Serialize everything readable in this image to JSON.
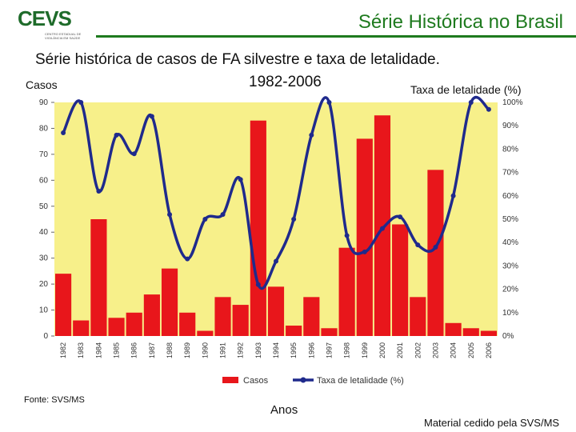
{
  "header": {
    "logo_text": "CEVS",
    "logo_subtext": "CENTRO ESTADUAL DE VIGILÂNCIA EM SAÚDE",
    "title": "Série Histórica no Brasil"
  },
  "chart_data": {
    "type": "bar",
    "title_line1": "Série histórica de casos  de FA silvestre e taxa de letalidade.",
    "title_line2": "1982-2006",
    "ylabel": "Casos",
    "y2label": "Taxa de letalidade (%)",
    "xlabel": "Anos",
    "categories": [
      "1982",
      "1983",
      "1984",
      "1985",
      "1986",
      "1987",
      "1988",
      "1989",
      "1990",
      "1991",
      "1992",
      "1993",
      "1994",
      "1995",
      "1996",
      "1997",
      "1998",
      "1999",
      "2000",
      "2001",
      "2002",
      "2003",
      "2004",
      "2005",
      "2006"
    ],
    "ylim": [
      0,
      90
    ],
    "yticks": [
      0,
      10,
      20,
      30,
      40,
      50,
      60,
      70,
      80,
      90
    ],
    "y2lim": [
      0,
      100
    ],
    "y2ticks": [
      "0%",
      "10%",
      "20%",
      "30%",
      "40%",
      "50%",
      "60%",
      "70%",
      "80%",
      "90%",
      "100%"
    ],
    "grid": false,
    "legend_position": "bottom",
    "series": [
      {
        "name": "Casos",
        "kind": "bar",
        "color": "#e8161b",
        "values": [
          24,
          6,
          45,
          7,
          9,
          16,
          26,
          9,
          2,
          15,
          12,
          83,
          19,
          4,
          15,
          3,
          34,
          76,
          85,
          43,
          15,
          64,
          5,
          3,
          2
        ]
      },
      {
        "name": "Taxa de letalidade (%)",
        "kind": "line",
        "color": "#1f2a8c",
        "axis": "right",
        "values": [
          87,
          100,
          62,
          86,
          78,
          94,
          52,
          33,
          50,
          52,
          67,
          22,
          32,
          50,
          86,
          100,
          43,
          36,
          46,
          51,
          39,
          38,
          60,
          100,
          97
        ]
      }
    ],
    "plot_background": "#f7f08a"
  },
  "source": "Fonte: SVS/MS",
  "credit": "Material cedido pela SVS/MS"
}
